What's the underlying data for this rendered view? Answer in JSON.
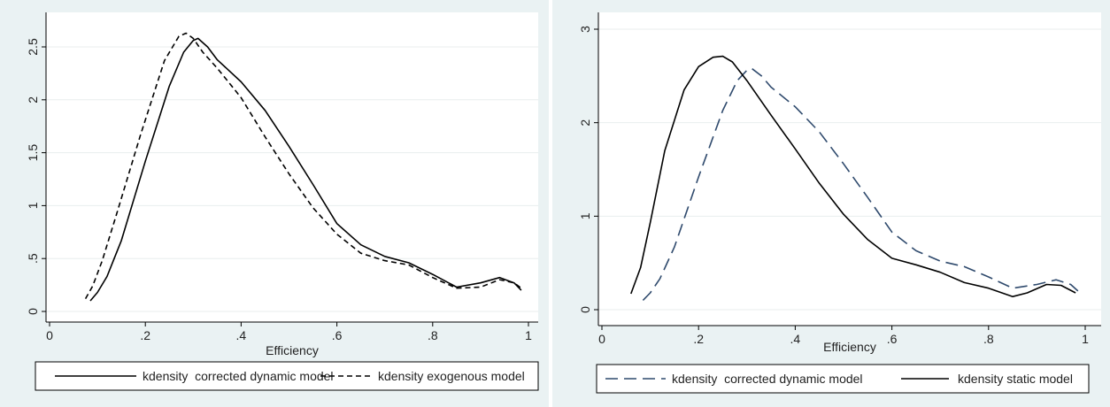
{
  "chart_data": [
    {
      "type": "line",
      "title": "",
      "xlabel": "Efficiency",
      "ylabel": "",
      "xlim": [
        0,
        1
      ],
      "ylim": [
        0,
        2.6
      ],
      "x_ticks": [
        0,
        0.2,
        0.4,
        0.6,
        0.8,
        1
      ],
      "x_tick_labels": [
        "0",
        ".2",
        ".4",
        ".6",
        ".8",
        "1"
      ],
      "y_ticks": [
        0,
        0.5,
        1,
        1.5,
        2,
        2.5
      ],
      "y_tick_labels": [
        "0",
        ".5",
        "1",
        "1.5",
        "2",
        "2.5"
      ],
      "grid": true,
      "legend_position": "bottom",
      "series": [
        {
          "name": "kdensity  corrected dynamic model",
          "style": "solid",
          "color": "#000000",
          "x": [
            0.085,
            0.1,
            0.12,
            0.15,
            0.2,
            0.25,
            0.28,
            0.3,
            0.31,
            0.33,
            0.35,
            0.4,
            0.45,
            0.5,
            0.55,
            0.6,
            0.65,
            0.7,
            0.75,
            0.8,
            0.85,
            0.9,
            0.94,
            0.97,
            0.985
          ],
          "y": [
            0.1,
            0.18,
            0.33,
            0.67,
            1.42,
            2.13,
            2.45,
            2.56,
            2.58,
            2.5,
            2.38,
            2.17,
            1.9,
            1.56,
            1.2,
            0.83,
            0.63,
            0.52,
            0.46,
            0.35,
            0.23,
            0.27,
            0.32,
            0.27,
            0.2
          ]
        },
        {
          "name": "kdensity exogenous model",
          "style": "dashed",
          "color": "#000000",
          "x": [
            0.075,
            0.09,
            0.11,
            0.14,
            0.19,
            0.24,
            0.27,
            0.285,
            0.3,
            0.32,
            0.35,
            0.4,
            0.45,
            0.5,
            0.55,
            0.6,
            0.65,
            0.7,
            0.75,
            0.8,
            0.85,
            0.9,
            0.94,
            0.97,
            0.985
          ],
          "y": [
            0.12,
            0.24,
            0.48,
            0.92,
            1.67,
            2.37,
            2.6,
            2.63,
            2.58,
            2.45,
            2.3,
            2.02,
            1.65,
            1.3,
            0.98,
            0.73,
            0.55,
            0.48,
            0.44,
            0.32,
            0.22,
            0.23,
            0.3,
            0.27,
            0.22
          ]
        }
      ]
    },
    {
      "type": "line",
      "title": "",
      "xlabel": "Efficiency",
      "ylabel": "",
      "xlim": [
        0,
        1
      ],
      "ylim": [
        0,
        3
      ],
      "x_ticks": [
        0,
        0.2,
        0.4,
        0.6,
        0.8,
        1
      ],
      "x_tick_labels": [
        "0",
        ".2",
        ".4",
        ".6",
        ".8",
        "1"
      ],
      "y_ticks": [
        0,
        1,
        2,
        3
      ],
      "y_tick_labels": [
        "0",
        "1",
        "2",
        "3"
      ],
      "grid": true,
      "legend_position": "bottom",
      "series": [
        {
          "name": "kdensity  corrected dynamic model",
          "style": "longdash",
          "color": "#2f4a6d",
          "x": [
            0.085,
            0.1,
            0.12,
            0.15,
            0.2,
            0.25,
            0.28,
            0.3,
            0.31,
            0.33,
            0.35,
            0.4,
            0.45,
            0.5,
            0.55,
            0.6,
            0.65,
            0.7,
            0.75,
            0.8,
            0.85,
            0.9,
            0.94,
            0.97,
            0.985
          ],
          "y": [
            0.1,
            0.18,
            0.33,
            0.67,
            1.42,
            2.13,
            2.45,
            2.56,
            2.58,
            2.5,
            2.38,
            2.17,
            1.9,
            1.56,
            1.2,
            0.83,
            0.63,
            0.52,
            0.46,
            0.35,
            0.23,
            0.27,
            0.32,
            0.27,
            0.2
          ]
        },
        {
          "name": "kdensity static model",
          "style": "solid",
          "color": "#000000",
          "x": [
            0.06,
            0.08,
            0.1,
            0.13,
            0.17,
            0.2,
            0.23,
            0.25,
            0.27,
            0.3,
            0.35,
            0.4,
            0.45,
            0.5,
            0.55,
            0.6,
            0.65,
            0.7,
            0.75,
            0.8,
            0.85,
            0.88,
            0.92,
            0.95,
            0.98
          ],
          "y": [
            0.17,
            0.45,
            0.93,
            1.7,
            2.35,
            2.6,
            2.7,
            2.71,
            2.65,
            2.45,
            2.08,
            1.72,
            1.35,
            1.02,
            0.75,
            0.55,
            0.48,
            0.4,
            0.29,
            0.23,
            0.14,
            0.18,
            0.27,
            0.26,
            0.18
          ]
        }
      ]
    }
  ]
}
